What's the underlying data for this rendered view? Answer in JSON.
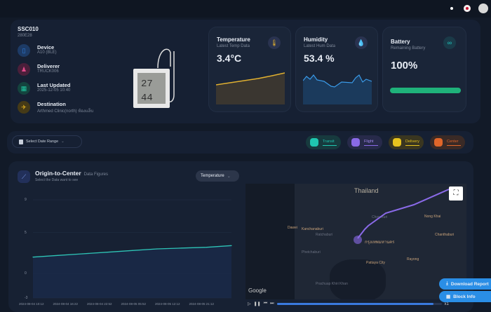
{
  "header": {
    "icons": [
      "sun-icon",
      "uk-flag-icon",
      "avatar"
    ]
  },
  "device": {
    "id": "SSC010",
    "code": "280E28",
    "items": [
      {
        "label": "Device",
        "value": "A10 (BLE)",
        "icon": "device-icon",
        "color": "#2f7fe0"
      },
      {
        "label": "Deliverer",
        "value": "TRUCK006",
        "icon": "users-icon",
        "color": "#c83a78"
      },
      {
        "label": "Last Updated",
        "value": "2025-12-05 10:40",
        "icon": "calendar-icon",
        "color": "#1fa088"
      },
      {
        "label": "Destination",
        "value": "Arthmed Clinic(north) ห้องแล็บ",
        "icon": "plane-icon",
        "color": "#d9a21c"
      }
    ]
  },
  "stats": {
    "temperature": {
      "title": "Temperature",
      "subtitle": "Latest Temp Data",
      "value": "3.4°C",
      "color": "#e0b030"
    },
    "humidity": {
      "title": "Humidity",
      "subtitle": "Latest Hum Data",
      "value": "53.4 %",
      "color": "#3a8ee0"
    },
    "battery": {
      "title": "Battery",
      "subtitle": "Remaining Battery",
      "value": "100%",
      "level": 100,
      "color": "#1fb27a"
    }
  },
  "filters": {
    "date_range": "Select Date Range",
    "legend": [
      {
        "label": "Transit",
        "color": "#1fc6b0"
      },
      {
        "label": "Flight",
        "color": "#8a6ae8"
      },
      {
        "label": "Delivery",
        "color": "#e6c21e"
      },
      {
        "label": "Center",
        "color": "#e0662a"
      }
    ]
  },
  "chart_panel": {
    "title": "Origin-to-Center",
    "title_suffix": "Data Figures",
    "subtitle": "Select the Data want to see",
    "select": "Temperature"
  },
  "chart_data": {
    "type": "line",
    "x_ticks": [
      "2024-08-04 10:12",
      "2024-08-04 16:22",
      "2024-08-04 22:52",
      "2024-08-05 05:52",
      "2024-08-05 12:12",
      "2024-08-05 21:12"
    ],
    "y_ticks": [
      9,
      5,
      0,
      -3
    ],
    "ylim": [
      -3,
      9
    ],
    "grid": true,
    "series": [
      {
        "values": [
          2.0,
          2.2,
          2.4,
          2.6,
          2.8,
          3.0,
          3.1,
          3.2,
          3.4
        ],
        "color": "#2ec4b6"
      }
    ]
  },
  "map": {
    "country": "Thailand",
    "places": [
      "Dawei",
      "Kanchanaburi",
      "Pattaya City",
      "Chon Buri",
      "Rayong",
      "Nong Khai",
      "Chanthaburi",
      "Prachuap Khiri Khan",
      "Phetchaburi",
      "Ratchaburi",
      "กรุงเทพมหานคร"
    ],
    "attribution": "Google",
    "playback_speed": "x1",
    "progress": 95
  },
  "actions": {
    "download": "Download Report",
    "block": "Block Info"
  }
}
